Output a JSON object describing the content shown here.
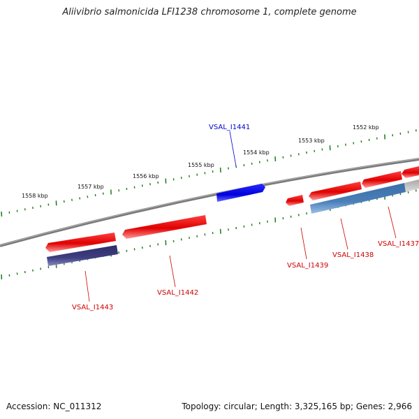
{
  "title": "Aliivibrio salmonicida LFI1238 chromosome 1, complete genome",
  "footer": {
    "accession": "Accession: NC_011312",
    "summary": "Topology: circular; Length: 3,325,165 bp; Genes: 2,966"
  },
  "kbp_labels": [
    "1552 kbp",
    "1553 kbp",
    "1554 kbp",
    "1555 kbp",
    "1556 kbp",
    "1557 kbp",
    "1558 kbp"
  ],
  "gene_labels": [
    "VSAL_I1441",
    "VSAL_I1442",
    "VSAL_I1443",
    "VSAL_I1439",
    "VSAL_I1438",
    "VSAL_I1437"
  ],
  "colors": {
    "forward_gene": "#ee0000",
    "reverse_gene_blue": "#0000ee",
    "cds_steelblue": "#4a7fb8",
    "cds_purple": "#3a3a7a",
    "backbone": "#888888",
    "tick": "#1a7a1a",
    "label_blue": "#0000cc",
    "label_red": "#cc0000"
  }
}
